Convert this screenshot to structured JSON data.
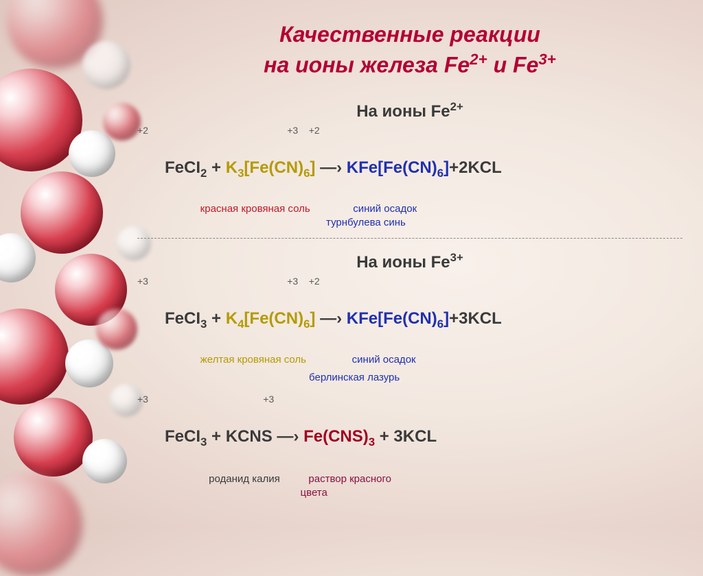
{
  "title": {
    "line1": "Качественные реакции",
    "line2_a": "на ионы железа ",
    "line2_b": "Fe",
    "line2_sup1": "2+",
    "line2_c": " и ",
    "line2_d": "Fe",
    "line2_sup2": "3+",
    "color": "#b30033",
    "fontsize": 32
  },
  "colors": {
    "text_default": "#3a3a3a",
    "red_label": "#c01828",
    "gold": "#b59a00",
    "blue": "#2030b0",
    "maroon": "#8a1040",
    "darkred": "#a00020",
    "sphere_red": "#c82838",
    "sphere_white": "#f0f0f0",
    "background": "#f2e8e0"
  },
  "section_fe2": {
    "heading_a": "На ионы ",
    "heading_b": "Fe",
    "heading_sup": "2+",
    "ox_line": "+2                                                    +3    +2",
    "ann1": "                      красная кровяная соль               синий осадок",
    "ann2": "                                                                  турнбулева синь",
    "eq": {
      "p1": "FeCI",
      "p1_sub": "2",
      "p2": " + ",
      "p3": "K",
      "p3_sub": "3",
      "p4": "[Fe(CN)",
      "p4_sub": "6",
      "p5": "]",
      "p6": " —› ",
      "p7": "KFe[Fe(CN)",
      "p7_sub": "6",
      "p8": "]",
      "p9": "+2KCL"
    }
  },
  "section_fe3": {
    "heading_a": "На ионы ",
    "heading_b": "Fe",
    "heading_sup": "3+",
    "ox_line1": "+3                                                    +3    +2",
    "ann1a": "                      желтая кровяная соль                синий осадок",
    "ann1b": "                                                            берлинская лазурь",
    "ox_line2": "+3                                           +3",
    "ann2a": "                         роданид калия          раствор красного",
    "ann2b": "                                                         цвета",
    "eq1": {
      "p1": "FeCI",
      "p1_sub": "3",
      "p2": " + ",
      "p3": "K",
      "p3_sub": "4",
      "p4": "[Fe(CN)",
      "p4_sub": "6",
      "p5": "]",
      "p6": " —› ",
      "p7": "KFe[Fe(CN)",
      "p7_sub": "6",
      "p8": "]",
      "p9": "+3KCL"
    },
    "eq2": {
      "p1": "FeCI",
      "p1_sub": "3",
      "p2": " + KCNS —› ",
      "p3": "Fe(CNS)",
      "p3_sub": "3",
      "p4": " + 3KCL"
    }
  },
  "style": {
    "eq_fontsize": 24,
    "heading_fontsize": 24,
    "ann_red_color": "#c01828",
    "ann_gold_color": "#b59a00",
    "ann_blue_color": "#2030b0",
    "ann_maroon_color": "#8a1040"
  }
}
